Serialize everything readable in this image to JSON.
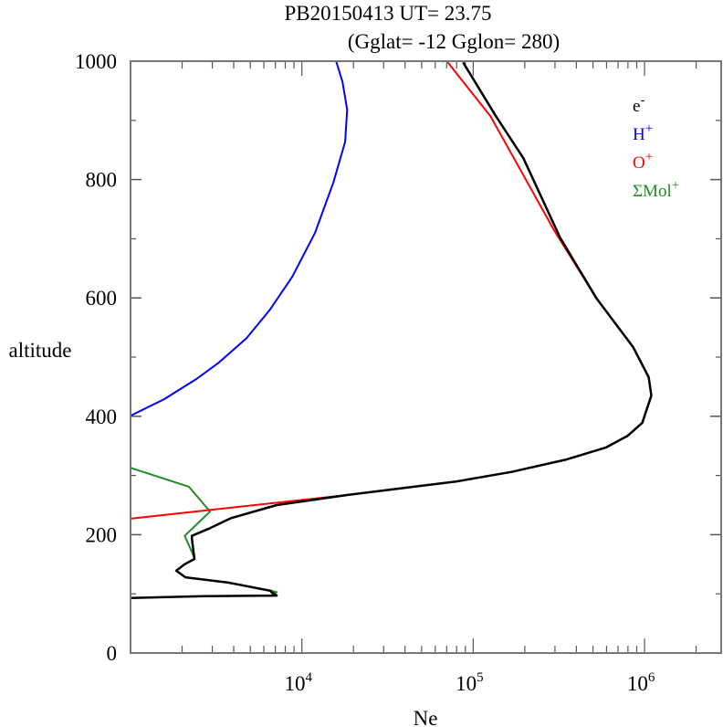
{
  "chart_data": {
    "type": "line",
    "title": "PB20150413   UT=  23.75",
    "subtitle": "(Gglat= -12   Gglon=  280)",
    "xlabel": "Ne",
    "ylabel": "altitude",
    "xscale": "log",
    "xlim": [
      1000,
      2800000
    ],
    "ylim": [
      0,
      1000
    ],
    "yticks": [
      "0",
      "200",
      "400",
      "600",
      "800",
      "1000"
    ],
    "xticks": [
      {
        "base": "10",
        "exp": "4",
        "value": 10000
      },
      {
        "base": "10",
        "exp": "5",
        "value": 100000
      },
      {
        "base": "10",
        "exp": "6",
        "value": 1000000
      }
    ],
    "grid": false,
    "legend_position": "top-right",
    "series": [
      {
        "name": "e",
        "sup": "-",
        "color": "#000000",
        "points": [
          [
            1000,
            93
          ],
          [
            2670,
            96
          ],
          [
            7130,
            97
          ],
          [
            6620,
            103
          ],
          [
            6620,
            105
          ],
          [
            3720,
            119
          ],
          [
            2090,
            128
          ],
          [
            1850,
            139
          ],
          [
            2070,
            150
          ],
          [
            2360,
            159
          ],
          [
            2280,
            193
          ],
          [
            2280,
            198
          ],
          [
            2910,
            211
          ],
          [
            3860,
            228
          ],
          [
            7130,
            250
          ],
          [
            18400,
            267
          ],
          [
            80200,
            290
          ],
          [
            167500,
            306
          ],
          [
            350000,
            327
          ],
          [
            593000,
            347
          ],
          [
            796000,
            367
          ],
          [
            970000,
            389
          ],
          [
            1096000,
            435
          ],
          [
            1057000,
            466
          ],
          [
            857000,
            517
          ],
          [
            524800,
            599
          ],
          [
            321400,
            702
          ],
          [
            196300,
            836
          ],
          [
            135800,
            907
          ],
          [
            87300,
            998
          ]
        ]
      },
      {
        "name": "H",
        "sup": "+",
        "color": "#0000ff",
        "points": [
          [
            1000,
            401
          ],
          [
            1574,
            429
          ],
          [
            2421,
            463
          ],
          [
            3289,
            491
          ],
          [
            4753,
            532
          ],
          [
            6471,
            579
          ],
          [
            8790,
            636
          ],
          [
            11940,
            710
          ],
          [
            15280,
            795
          ],
          [
            17900,
            864
          ],
          [
            18370,
            918
          ],
          [
            17260,
            965
          ],
          [
            15850,
            1000
          ]
        ]
      },
      {
        "name": "O",
        "sup": "+",
        "color": "#ff0000",
        "points": [
          [
            1000,
            227
          ],
          [
            18400,
            267
          ],
          [
            80200,
            290
          ],
          [
            167500,
            306
          ],
          [
            350000,
            327
          ],
          [
            593000,
            347
          ],
          [
            796000,
            367
          ],
          [
            970000,
            389
          ],
          [
            1096000,
            435
          ],
          [
            1057000,
            466
          ],
          [
            857000,
            517
          ],
          [
            524800,
            599
          ],
          [
            298500,
            713
          ],
          [
            126200,
            907
          ],
          [
            71000,
            998
          ]
        ]
      },
      {
        "name": "ΣMol",
        "sup": "+",
        "color": "#228b22",
        "points": [
          [
            1000,
            313
          ],
          [
            2190,
            281
          ],
          [
            2910,
            239
          ],
          [
            2070,
            198
          ],
          [
            2330,
            165
          ],
          [
            2360,
            159
          ],
          [
            2070,
            150
          ],
          [
            1850,
            139
          ],
          [
            2090,
            128
          ],
          [
            3720,
            119
          ],
          [
            6620,
            105
          ],
          [
            7130,
            103
          ],
          [
            6620,
            97
          ],
          [
            2670,
            96
          ],
          [
            1000,
            93
          ]
        ]
      }
    ]
  }
}
